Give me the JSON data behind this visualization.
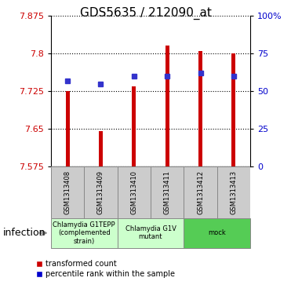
{
  "title": "GDS5635 / 212090_at",
  "samples": [
    "GSM1313408",
    "GSM1313409",
    "GSM1313410",
    "GSM1313411",
    "GSM1313412",
    "GSM1313413"
  ],
  "transformed_counts": [
    7.725,
    7.645,
    7.735,
    7.815,
    7.805,
    7.8
  ],
  "percentile_ranks": [
    57,
    55,
    60,
    60,
    62,
    60
  ],
  "ylim": [
    7.575,
    7.875
  ],
  "yticks": [
    7.575,
    7.65,
    7.725,
    7.8,
    7.875
  ],
  "y_right_ticks": [
    0,
    25,
    50,
    75,
    100
  ],
  "bar_color": "#cc0000",
  "dot_color": "#3333cc",
  "groups": [
    {
      "label": "Chlamydia G1TEPP\n(complemented\nstrain)",
      "color": "#ccffcc",
      "start": 0,
      "end": 2
    },
    {
      "label": "Chlamydia G1V\nmutant",
      "color": "#ccffcc",
      "start": 2,
      "end": 4
    },
    {
      "label": "mock",
      "color": "#55cc55",
      "start": 4,
      "end": 6
    }
  ],
  "sample_box_color": "#cccccc",
  "infection_label": "infection",
  "title_fontsize": 11,
  "tick_fontsize": 8,
  "bar_width": 0.12
}
